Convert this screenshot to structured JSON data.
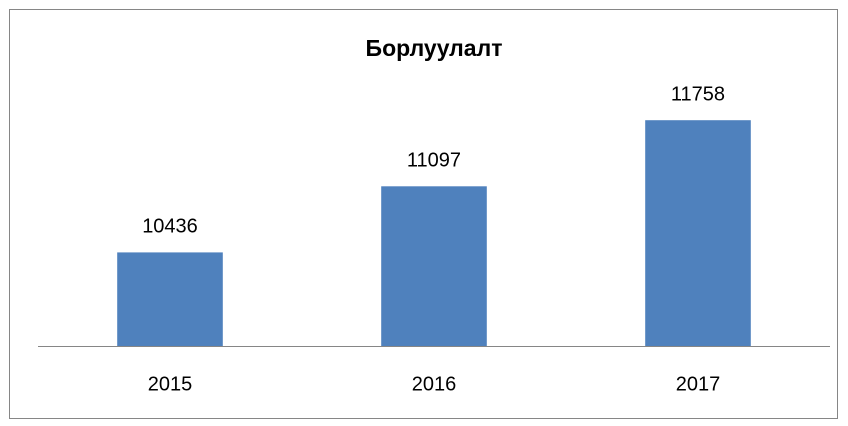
{
  "chart_data": {
    "type": "bar",
    "title": "Борлуулалт",
    "categories": [
      "2015",
      "2016",
      "2017"
    ],
    "values": [
      10436,
      11097,
      11758
    ],
    "color": "#4f81bd",
    "ylim": [
      9500,
      12000
    ]
  }
}
